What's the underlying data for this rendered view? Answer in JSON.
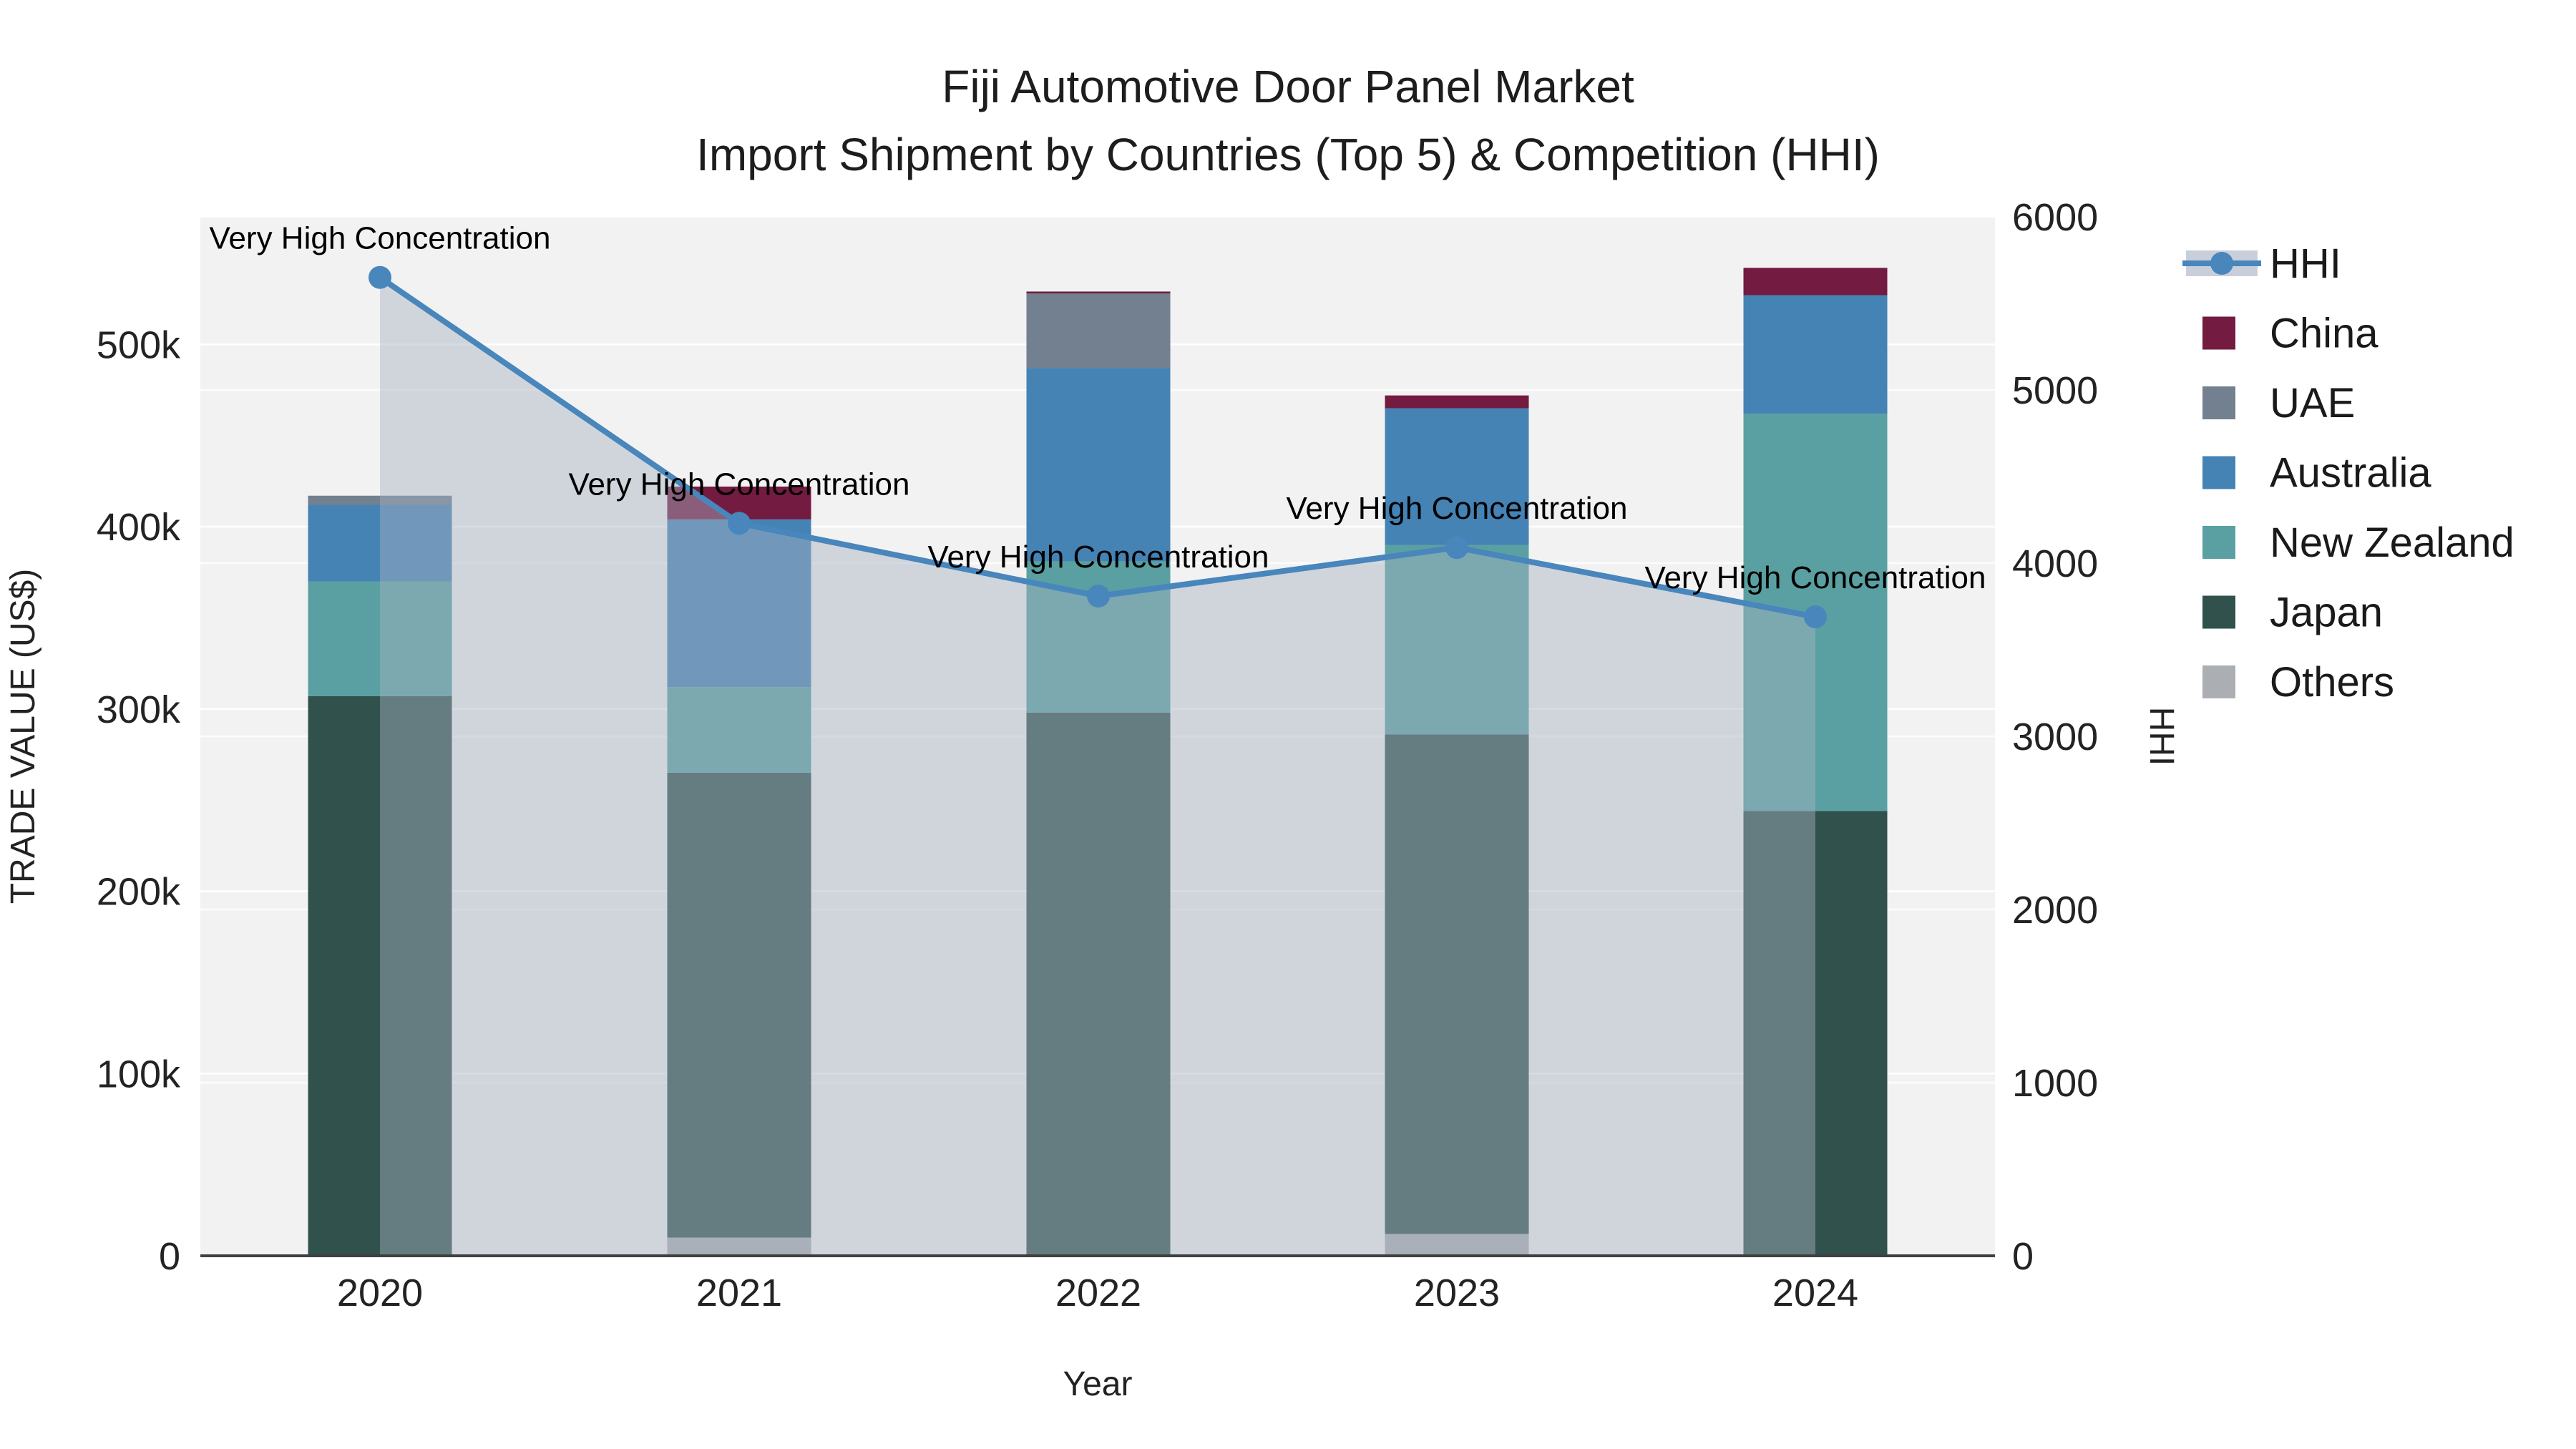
{
  "chart_data": {
    "type": "bar",
    "stacked": true,
    "title": "Fiji Automotive Door Panel Market",
    "subtitle": "Import Shipment by Countries (Top 5) & Competition (HHI)",
    "xlabel": "Year",
    "ylabel_left": "TRADE VALUE (US$)",
    "ylabel_right": "HHI",
    "categories": [
      "2020",
      "2021",
      "2022",
      "2023",
      "2024"
    ],
    "value_unit": "thousand US$",
    "series": [
      {
        "name": "Others",
        "color": "#abafb4",
        "values": [
          0,
          10,
          0,
          12,
          0
        ]
      },
      {
        "name": "Japan",
        "color": "#30514c",
        "values": [
          307,
          255,
          298,
          274,
          244
        ]
      },
      {
        "name": "New Zealand",
        "color": "#5aa0a2",
        "values": [
          63,
          47,
          83,
          104,
          218
        ]
      },
      {
        "name": "Australia",
        "color": "#4583b5",
        "values": [
          42,
          92,
          106,
          75,
          65
        ]
      },
      {
        "name": "UAE",
        "color": "#72808f",
        "values": [
          5,
          0,
          41,
          0,
          0
        ]
      },
      {
        "name": "China",
        "color": "#731b40",
        "values": [
          0,
          18,
          1,
          7,
          15
        ]
      }
    ],
    "hhi": {
      "name": "HHI",
      "line_color": "#4886bc",
      "area_fill": "rgba(167,177,193,0.45)",
      "values": [
        5650,
        4230,
        3810,
        4090,
        3690
      ]
    },
    "annotations": [
      {
        "year": "2020",
        "text": "Very High Concentration"
      },
      {
        "year": "2021",
        "text": "Very High Concentration"
      },
      {
        "year": "2022",
        "text": "Very High Concentration"
      },
      {
        "year": "2023",
        "text": "Very High Concentration"
      },
      {
        "year": "2024",
        "text": "Very High Concentration"
      }
    ],
    "y_left": {
      "max": 570,
      "ticks": [
        {
          "value": 0,
          "label": "0"
        },
        {
          "value": 100,
          "label": "100k"
        },
        {
          "value": 200,
          "label": "200k"
        },
        {
          "value": 300,
          "label": "300k"
        },
        {
          "value": 400,
          "label": "400k"
        },
        {
          "value": 500,
          "label": "500k"
        }
      ]
    },
    "y_right": {
      "max": 6000,
      "ticks": [
        {
          "value": 0,
          "label": "0"
        },
        {
          "value": 1000,
          "label": "1000"
        },
        {
          "value": 2000,
          "label": "2000"
        },
        {
          "value": 3000,
          "label": "3000"
        },
        {
          "value": 4000,
          "label": "4000"
        },
        {
          "value": 5000,
          "label": "5000"
        },
        {
          "value": 6000,
          "label": "6000"
        }
      ]
    },
    "legend_order": [
      "HHI",
      "China",
      "UAE",
      "Australia",
      "New Zealand",
      "Japan",
      "Others"
    ],
    "plot_bg": "#f2f2f2",
    "grid_color": "#ffffff",
    "axisline_color": "#3f3f3f"
  }
}
